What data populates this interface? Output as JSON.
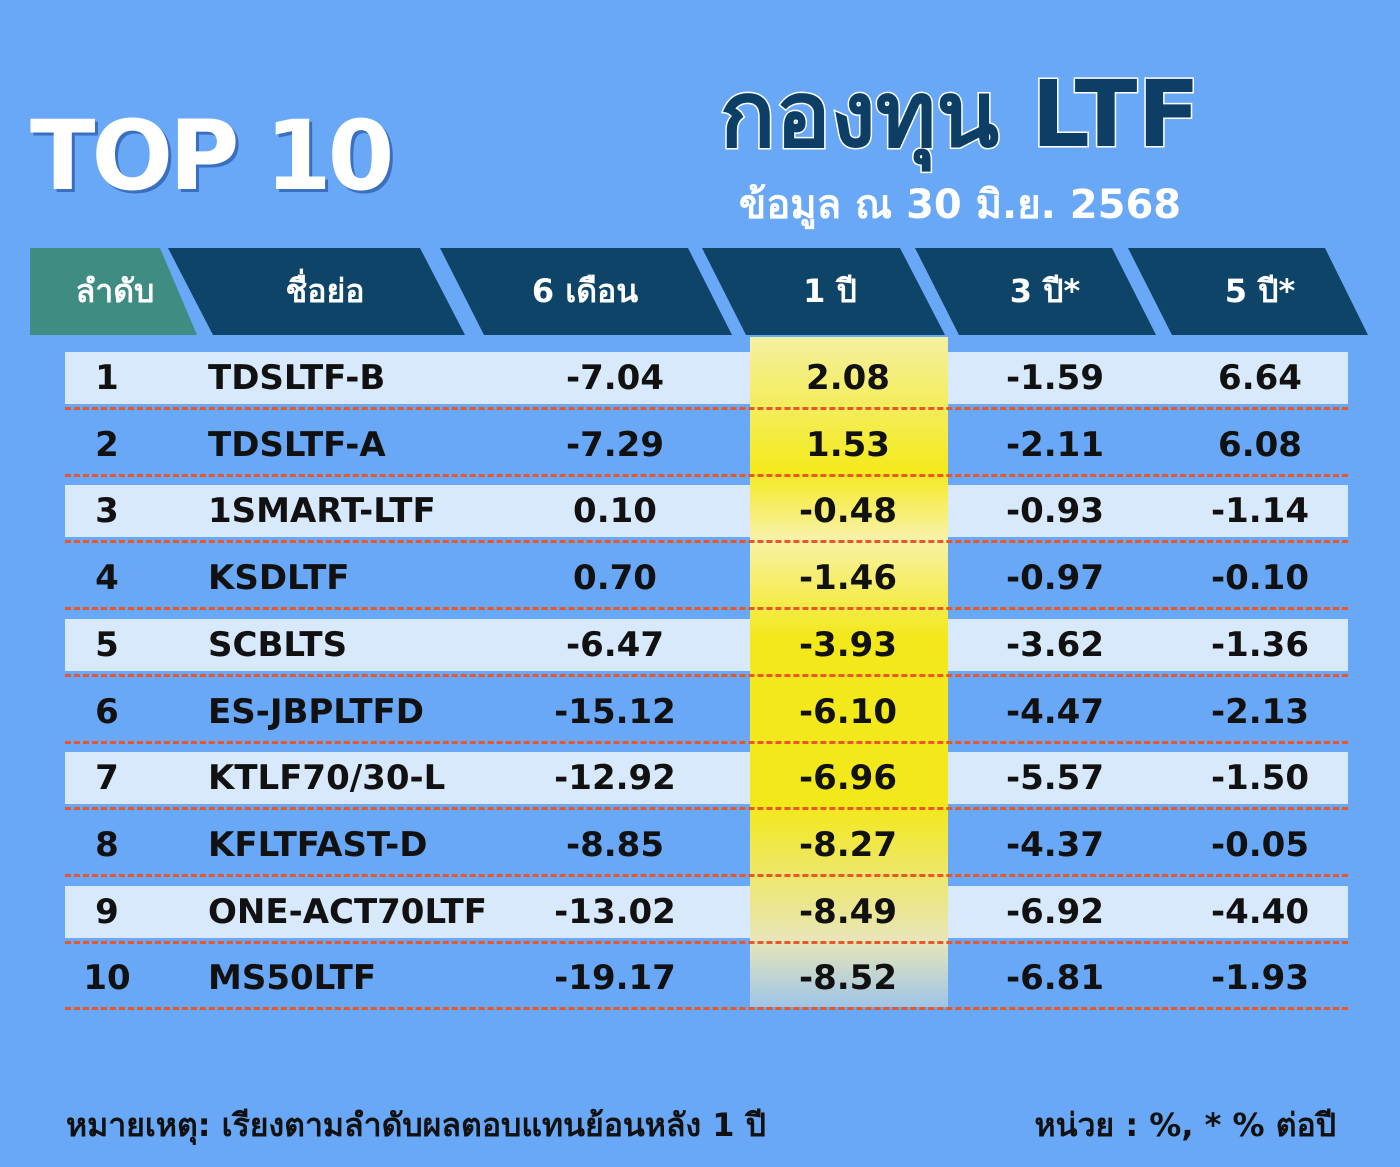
{
  "header": {
    "badge": "TOP 10",
    "title": "กองทุน LTF",
    "subtitle": "ข้อมูล ณ 30 มิ.ย. 2568"
  },
  "table": {
    "columns": [
      "ลำดับ",
      "ชื่อย่อ",
      "6 เดือน",
      "1 ปี",
      "3 ปี*",
      "5 ปี*"
    ],
    "rows": [
      [
        "1",
        "TDSLTF-B",
        "-7.04",
        "2.08",
        "-1.59",
        "6.64"
      ],
      [
        "2",
        "TDSLTF-A",
        "-7.29",
        "1.53",
        "-2.11",
        "6.08"
      ],
      [
        "3",
        "1SMART-LTF",
        "0.10",
        "-0.48",
        "-0.93",
        "-1.14"
      ],
      [
        "4",
        "KSDLTF",
        "0.70",
        "-1.46",
        "-0.97",
        "-0.10"
      ],
      [
        "5",
        "SCBLTS",
        "-6.47",
        "-3.93",
        "-3.62",
        "-1.36"
      ],
      [
        "6",
        "ES-JBPLTFD",
        "-15.12",
        "-6.10",
        "-4.47",
        "-2.13"
      ],
      [
        "7",
        "KTLF70/30-L",
        "-12.92",
        "-6.96",
        "-5.57",
        "-1.50"
      ],
      [
        "8",
        "KFLTFAST-D",
        "-8.85",
        "-8.27",
        "-4.37",
        "-0.05"
      ],
      [
        "9",
        "ONE-ACT70LTF",
        "-13.02",
        "-8.49",
        "-6.92",
        "-4.40"
      ],
      [
        "10",
        "MS50LTF",
        "-19.17",
        "-8.52",
        "-6.81",
        "-1.93"
      ]
    ]
  },
  "footer": {
    "note": "หมายเหตุ: เรียงตามลำดับผลตอบแทนย้อนหลัง 1 ปี",
    "unit": "หน่วย : %, * % ต่อปี"
  }
}
